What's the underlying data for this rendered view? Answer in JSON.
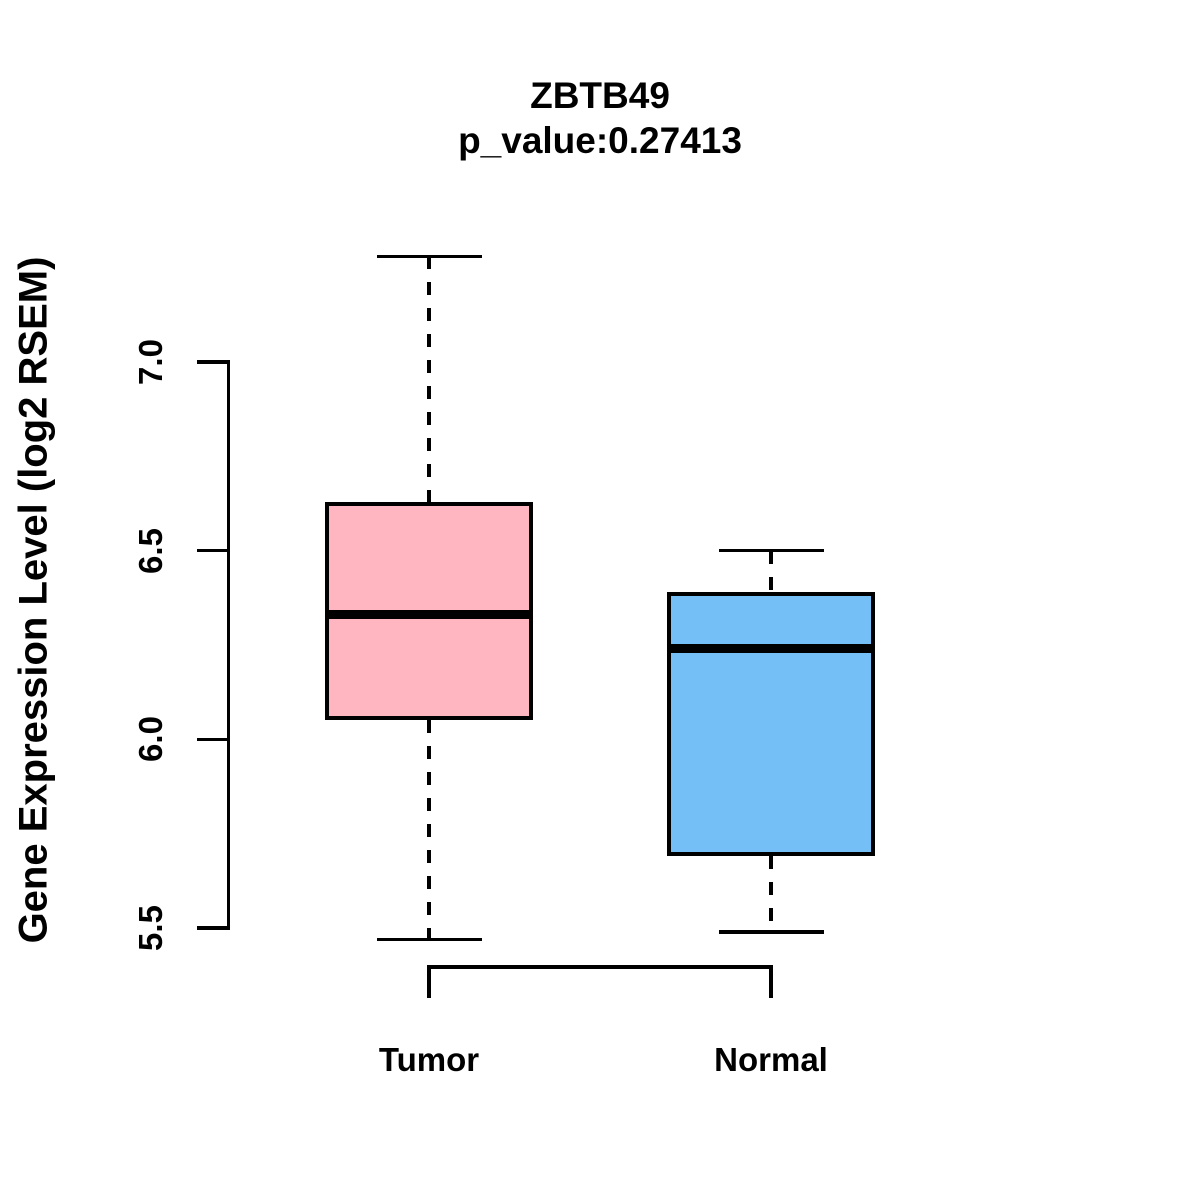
{
  "title": "ZBTB49",
  "subtitle": "p_value:0.27413",
  "chart_data": {
    "type": "boxplot",
    "title": "ZBTB49",
    "subtitle": "p_value:0.27413",
    "xlabel": "",
    "ylabel": "Gene Expression Level (log2 RSEM)",
    "categories": [
      "Tumor",
      "Normal"
    ],
    "y_ticks": [
      "5.5",
      "6.0",
      "6.5",
      "7.0"
    ],
    "y_tick_values": [
      5.5,
      6.0,
      6.5,
      7.0
    ],
    "y_axis_range": [
      5.5,
      7.0
    ],
    "grid": false,
    "legend": "none",
    "series": [
      {
        "name": "Tumor",
        "color": "#FFB6C1",
        "whisker_low": 5.47,
        "q1": 6.05,
        "median": 6.33,
        "q3": 6.63,
        "whisker_high": 7.28
      },
      {
        "name": "Normal",
        "color": "#74BFF5",
        "whisker_low": 5.49,
        "q1": 5.69,
        "median": 6.24,
        "q3": 6.39,
        "whisker_high": 6.5
      }
    ],
    "colors": {
      "axis": "#000000",
      "text": "#000000",
      "background": "#FFFFFF",
      "tumor_fill": "#FFB6C1",
      "normal_fill": "#74BFF5"
    }
  }
}
